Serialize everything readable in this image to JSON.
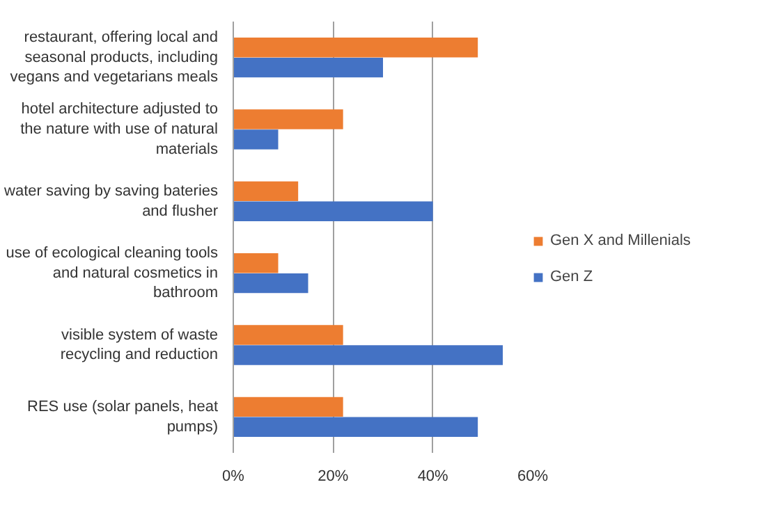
{
  "chart_data": {
    "type": "bar",
    "orientation": "horizontal",
    "categories": [
      "restaurant, offering local and seasonal products, including vegans and vegetarians meals",
      "hotel architecture adjusted to the nature with use of natural materials",
      "water saving by saving bateries and flusher",
      "use of ecological cleaning tools and natural cosmetics in bathroom",
      "visible system of waste recycling and reduction",
      "RES use (solar panels, heat pumps)"
    ],
    "series": [
      {
        "name": "Gen X and Millenials",
        "color": "#ed7d31",
        "values": [
          49,
          22,
          13,
          9,
          22,
          22
        ]
      },
      {
        "name": "Gen Z",
        "color": "#4472c4",
        "values": [
          30,
          9,
          40,
          15,
          54,
          49
        ]
      }
    ],
    "xlim": [
      0,
      60
    ],
    "xticks": [
      {
        "value": 0,
        "label": "0%"
      },
      {
        "value": 20,
        "label": "20%"
      },
      {
        "value": 40,
        "label": "40%"
      },
      {
        "value": 60,
        "label": "60%"
      }
    ],
    "grid": "x",
    "legend": "right"
  }
}
